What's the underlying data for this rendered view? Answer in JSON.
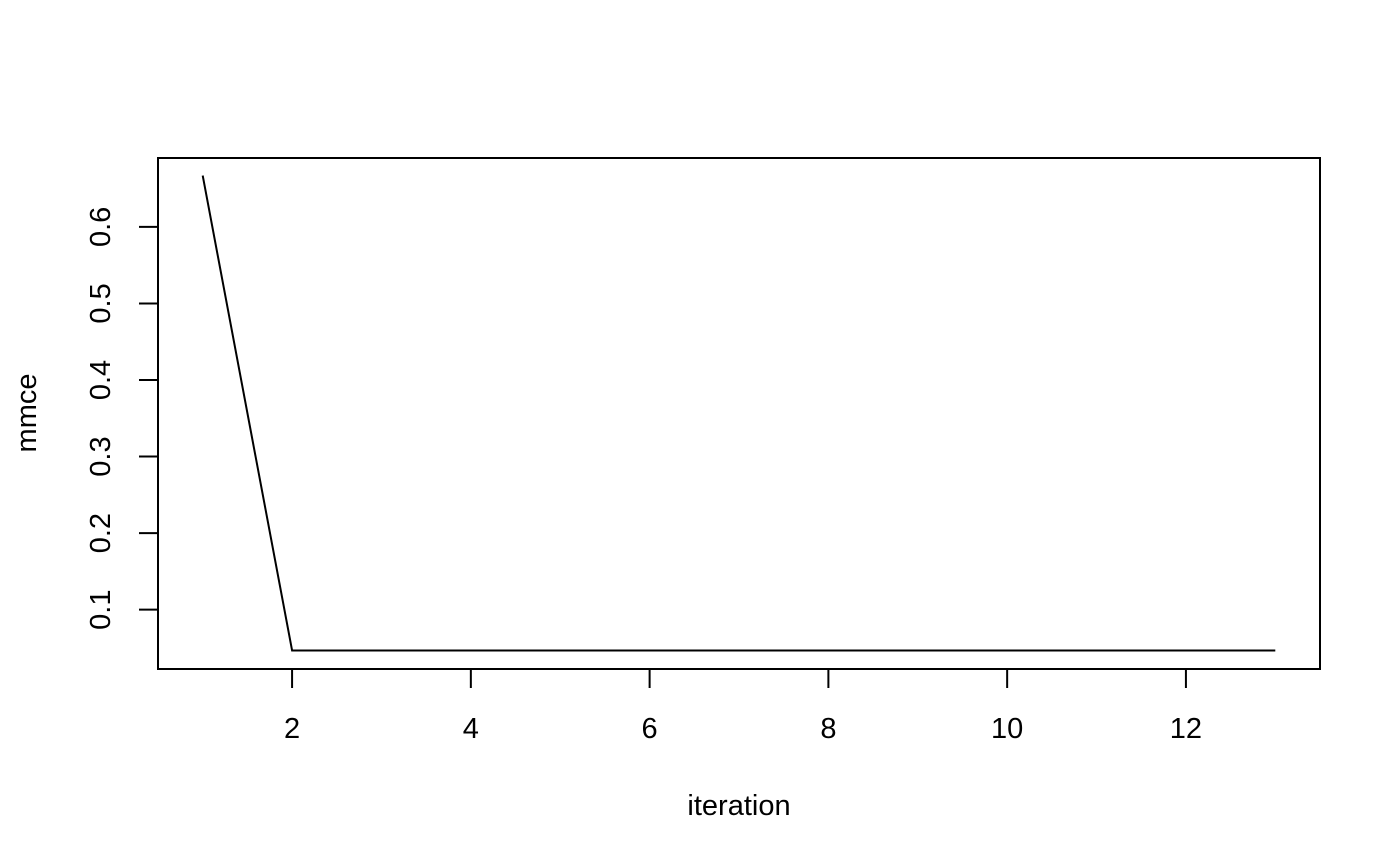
{
  "chart_data": {
    "type": "line",
    "title": "",
    "xlabel": "iteration",
    "ylabel": "mmce",
    "xlim": [
      0.5,
      13.5
    ],
    "ylim": [
      0.0225,
      0.69
    ],
    "x_ticks": [
      2,
      4,
      6,
      8,
      10,
      12
    ],
    "x_tick_labels": [
      "2",
      "4",
      "6",
      "8",
      "10",
      "12"
    ],
    "y_ticks": [
      0.1,
      0.2,
      0.3,
      0.4,
      0.5,
      0.6
    ],
    "y_tick_labels": [
      "0.1",
      "0.2",
      "0.3",
      "0.4",
      "0.5",
      "0.6"
    ],
    "grid": false,
    "legend": "none",
    "series": [
      {
        "x": [
          1,
          2,
          3,
          4,
          5,
          6,
          7,
          8,
          9,
          10,
          11,
          12,
          13
        ],
        "values": [
          0.667,
          0.0467,
          0.0467,
          0.0467,
          0.0467,
          0.0467,
          0.0467,
          0.0467,
          0.0467,
          0.0467,
          0.0467,
          0.0467,
          0.0467
        ],
        "color": "#000000"
      }
    ]
  }
}
